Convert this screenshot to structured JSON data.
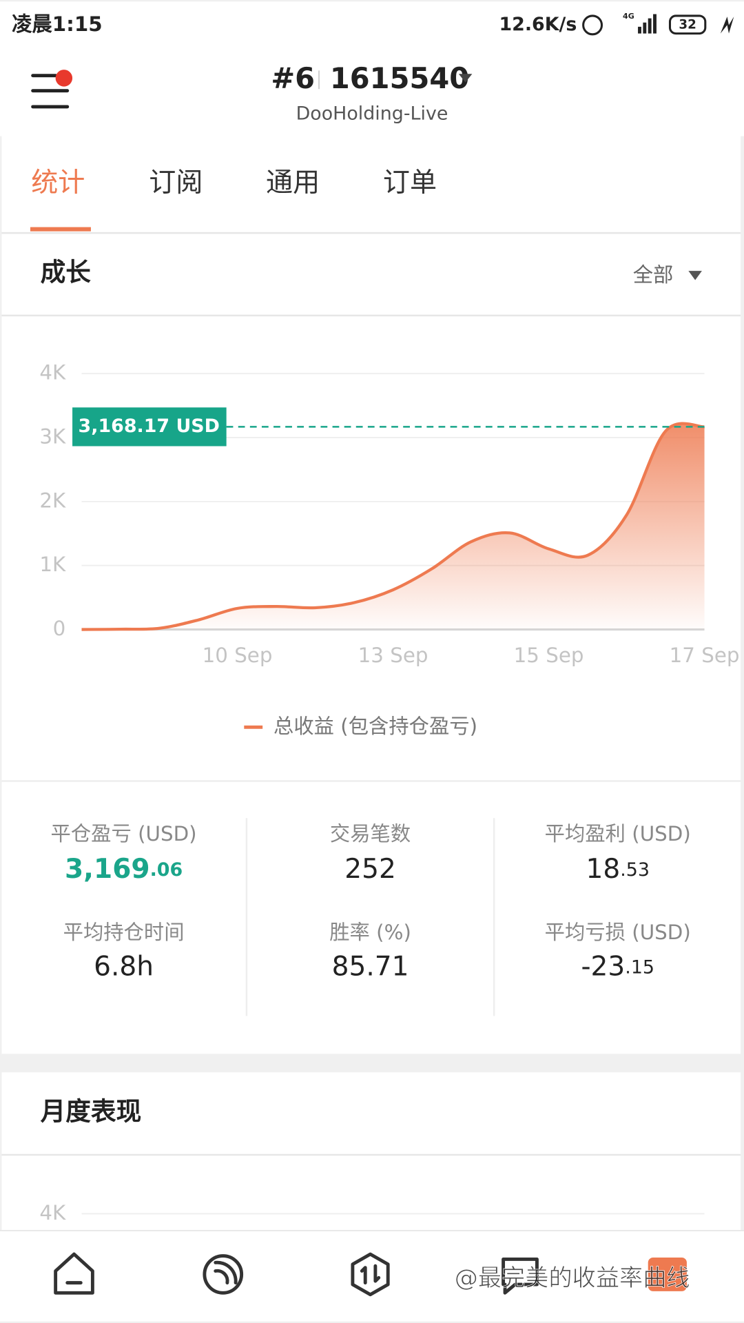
{
  "status_bar": {
    "time": "凌晨1:15",
    "speed": "12.6K/s",
    "network": "4G",
    "battery": "32"
  },
  "header": {
    "account_no": "#6",
    "login": "1615540",
    "server": "DooHolding-Live"
  },
  "tabs": [
    "统计",
    "订阅",
    "通用",
    "订单"
  ],
  "growth": {
    "title": "成长",
    "filter": "全部"
  },
  "chart_data": {
    "type": "area",
    "categories": [
      null,
      null,
      null,
      null,
      "10 Sep",
      null,
      null,
      null,
      "13 Sep",
      null,
      null,
      null,
      "15 Sep",
      null,
      null,
      null,
      "17 Sep"
    ],
    "series": [
      {
        "name": "总收益 (包含持仓盈亏)",
        "color": "#ee7a50",
        "values": [
          0,
          5,
          20,
          150,
          330,
          360,
          340,
          420,
          620,
          950,
          1370,
          1510,
          1260,
          1160,
          1790,
          3100,
          3168.17
        ],
        "last_value_label": "3,168.17 USD"
      }
    ],
    "ylim": [
      0,
      4000
    ],
    "yticks": [
      0,
      {
        "value": 1000,
        "label": "1K"
      },
      {
        "value": 2000,
        "label": "2K"
      },
      {
        "value": 3000,
        "label": "3K"
      },
      {
        "value": 4000,
        "label": "4K"
      }
    ],
    "grid": true,
    "legend": "bottom",
    "marker_color": "#17a589"
  },
  "stats": [
    {
      "label": "平仓盈亏 (USD)",
      "main": "3,169",
      "decimal": ".06",
      "highlight": true
    },
    {
      "label": "交易笔数",
      "main": "252"
    },
    {
      "label": "平均盈利 (USD)",
      "main": "18",
      "decimal": ".53"
    },
    {
      "label": "平均持仓时间",
      "main": "6.8h"
    },
    {
      "label": "胜率 (%)",
      "main": "85.71"
    },
    {
      "label": "平均亏损 (USD)",
      "main": "-23",
      "decimal": ".15"
    }
  ],
  "monthly": {
    "title": "月度表现",
    "ytick_label": "4K"
  },
  "watermark": "@最完美的收益率曲线"
}
